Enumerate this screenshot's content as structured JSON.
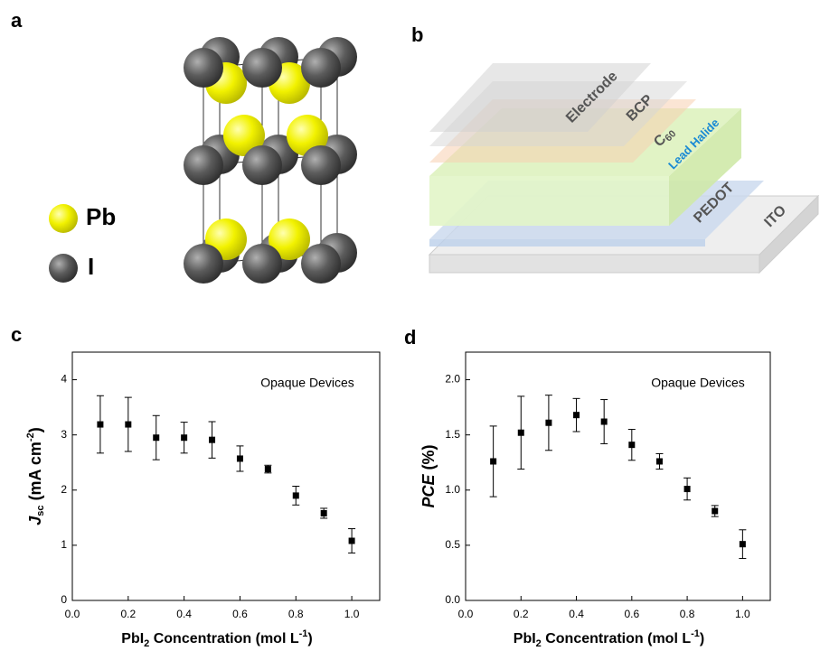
{
  "panel_labels": [
    "a",
    "b"
  ],
  "crystal": {
    "legend": [
      "Pb",
      "I"
    ]
  },
  "layers": {
    "electrode": "Electrode",
    "bcp": "BCP",
    "c60": [
      "C",
      "60"
    ],
    "lead_halide": "Lead Halide",
    "pedot": "PEDOT",
    "ito": "ITO"
  },
  "chart_data": [
    {
      "type": "scatter",
      "panel_label": "c",
      "annotation": "Opaque Devices",
      "x": [
        0.1,
        0.2,
        0.3,
        0.4,
        0.5,
        0.6,
        0.7,
        0.8,
        0.9,
        1.0
      ],
      "values": [
        3.19,
        3.19,
        2.95,
        2.95,
        2.91,
        2.57,
        2.38,
        1.9,
        1.58,
        1.08
      ],
      "errors": [
        0.52,
        0.49,
        0.4,
        0.28,
        0.33,
        0.23,
        0.07,
        0.17,
        0.09,
        0.22
      ],
      "color": "#000000",
      "x_label": [
        "PbI",
        "2",
        " Concentration (mol L",
        "-1",
        ")"
      ],
      "y_label": [
        "J",
        "sc",
        " (mA cm",
        "-2",
        ")"
      ],
      "xlim": [
        0,
        1.1
      ],
      "ylim": [
        0,
        4.5
      ],
      "xticks": [
        {
          "value": 0,
          "label": "0.0"
        },
        0.2,
        0.4,
        0.6,
        0.8,
        {
          "value": 1,
          "label": "1.0"
        }
      ],
      "yticks": [
        0,
        1,
        2,
        3,
        4
      ]
    },
    {
      "type": "scatter",
      "panel_label": "d",
      "annotation": "Opaque Devices",
      "x": [
        0.1,
        0.2,
        0.3,
        0.4,
        0.5,
        0.6,
        0.7,
        0.8,
        0.9,
        1.0
      ],
      "values": [
        1.26,
        1.52,
        1.61,
        1.68,
        1.62,
        1.41,
        1.26,
        1.01,
        0.81,
        0.51
      ],
      "errors": [
        0.32,
        0.33,
        0.25,
        0.15,
        0.2,
        0.14,
        0.07,
        0.1,
        0.05,
        0.13
      ],
      "color": "#000000",
      "x_label": [
        "PbI",
        "2",
        " Concentration (mol L",
        "-1",
        ")"
      ],
      "y_label": [
        "PCE",
        " (%)"
      ],
      "xlim": [
        0,
        1.1
      ],
      "ylim": [
        0,
        2.25
      ],
      "xticks": [
        {
          "value": 0,
          "label": "0.0"
        },
        0.2,
        0.4,
        0.6,
        0.8,
        {
          "value": 1,
          "label": "1.0"
        }
      ],
      "yticks": [
        {
          "value": 0,
          "label": "0.0"
        },
        0.5,
        {
          "value": 1,
          "label": "1.0"
        },
        1.5,
        {
          "value": 2,
          "label": "2.0"
        }
      ]
    }
  ]
}
